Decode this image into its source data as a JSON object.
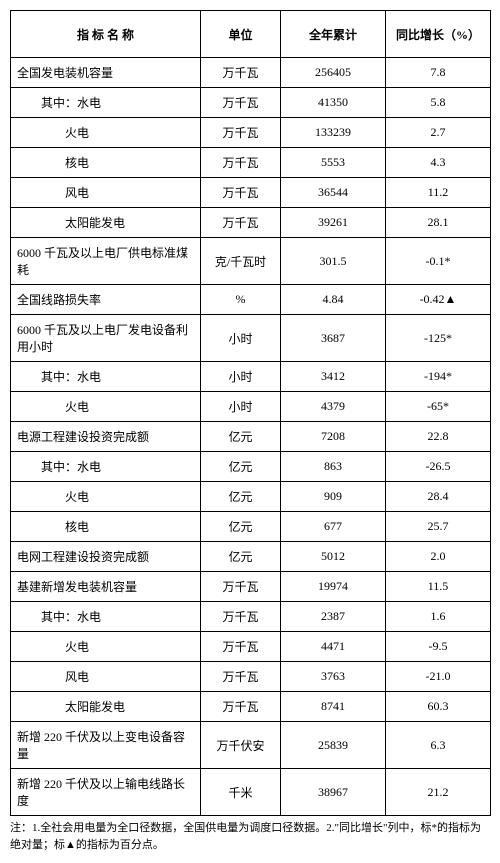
{
  "columns": [
    "指 标 名 称",
    "单位",
    "全年累计",
    "同比增长（%）"
  ],
  "rows": [
    {
      "indent": 0,
      "name": "全国发电装机容量",
      "unit": "万千瓦",
      "total": "256405",
      "yoy": "7.8"
    },
    {
      "indent": 1,
      "name": "其中：水电",
      "unit": "万千瓦",
      "total": "41350",
      "yoy": "5.8"
    },
    {
      "indent": 2,
      "name": "火电",
      "unit": "万千瓦",
      "total": "133239",
      "yoy": "2.7"
    },
    {
      "indent": 2,
      "name": "核电",
      "unit": "万千瓦",
      "total": "5553",
      "yoy": "4.3"
    },
    {
      "indent": 2,
      "name": "风电",
      "unit": "万千瓦",
      "total": "36544",
      "yoy": "11.2"
    },
    {
      "indent": 2,
      "name": "太阳能发电",
      "unit": "万千瓦",
      "total": "39261",
      "yoy": "28.1"
    },
    {
      "indent": 0,
      "name": "6000 千瓦及以上电厂供电标准煤耗",
      "unit": "克/千瓦时",
      "total": "301.5",
      "yoy": "-0.1*"
    },
    {
      "indent": 0,
      "name": "全国线路损失率",
      "unit": "%",
      "total": "4.84",
      "yoy": "-0.42▲"
    },
    {
      "indent": 0,
      "name": "6000 千瓦及以上电厂发电设备利用小时",
      "unit": "小时",
      "total": "3687",
      "yoy": "-125*"
    },
    {
      "indent": 1,
      "name": "其中：水电",
      "unit": "小时",
      "total": "3412",
      "yoy": "-194*"
    },
    {
      "indent": 2,
      "name": "火电",
      "unit": "小时",
      "total": "4379",
      "yoy": "-65*"
    },
    {
      "indent": 0,
      "name": "电源工程建设投资完成额",
      "unit": "亿元",
      "total": "7208",
      "yoy": "22.8"
    },
    {
      "indent": 1,
      "name": "其中：水电",
      "unit": "亿元",
      "total": "863",
      "yoy": "-26.5"
    },
    {
      "indent": 2,
      "name": "火电",
      "unit": "亿元",
      "total": "909",
      "yoy": "28.4"
    },
    {
      "indent": 2,
      "name": "核电",
      "unit": "亿元",
      "total": "677",
      "yoy": "25.7"
    },
    {
      "indent": 0,
      "name": "电网工程建设投资完成额",
      "unit": "亿元",
      "total": "5012",
      "yoy": "2.0"
    },
    {
      "indent": 0,
      "name": "基建新增发电装机容量",
      "unit": "万千瓦",
      "total": "19974",
      "yoy": "11.5"
    },
    {
      "indent": 1,
      "name": "其中：水电",
      "unit": "万千瓦",
      "total": "2387",
      "yoy": "1.6"
    },
    {
      "indent": 2,
      "name": "火电",
      "unit": "万千瓦",
      "total": "4471",
      "yoy": "-9.5"
    },
    {
      "indent": 2,
      "name": "风电",
      "unit": "万千瓦",
      "total": "3763",
      "yoy": "-21.0"
    },
    {
      "indent": 2,
      "name": "太阳能发电",
      "unit": "万千瓦",
      "total": "8741",
      "yoy": "60.3"
    },
    {
      "indent": 0,
      "name": "新增 220 千伏及以上变电设备容量",
      "unit": "万千伏安",
      "total": "25839",
      "yoy": "6.3"
    },
    {
      "indent": 0,
      "name": "新增 220 千伏及以上输电线路长度",
      "unit": "千米",
      "total": "38967",
      "yoy": "21.2"
    }
  ],
  "footnote": "注：1.全社会用电量为全口径数据，全国供电量为调度口径数据。2.\"同比增长\"列中，标*的指标为绝对量；标▲的指标为百分点。"
}
